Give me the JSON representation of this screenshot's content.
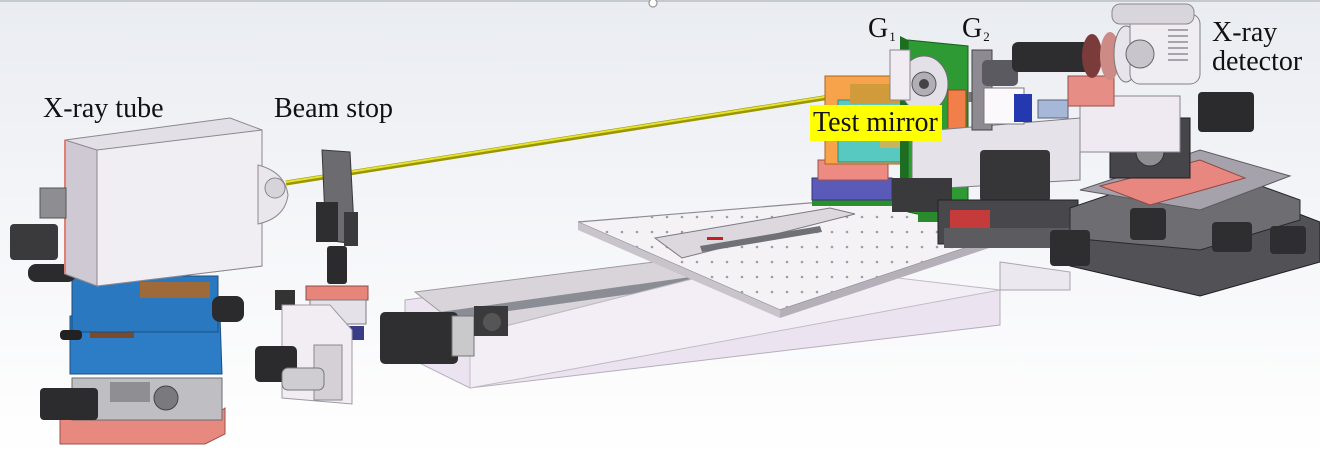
{
  "labels": {
    "xray_tube": "X-ray tube",
    "beam_stop": "Beam stop",
    "grating_1": "G",
    "grating_1_sub": "1",
    "grating_2": "G",
    "grating_2_sub": "2",
    "detector_line1": "X-ray",
    "detector_line2": "detector",
    "test_mirror": "Test mirror"
  },
  "colors": {
    "beam": "#c8c400",
    "highlight": "#ffff00",
    "grating_board": "#2e9a33",
    "blue_stage": "#2a78c0",
    "pink_plate": "#e8908a",
    "motor": "#353535"
  },
  "icons": {
    "tube": "xray-tube-housing",
    "stop": "beam-stop-plate",
    "detector": "camera-detector"
  }
}
